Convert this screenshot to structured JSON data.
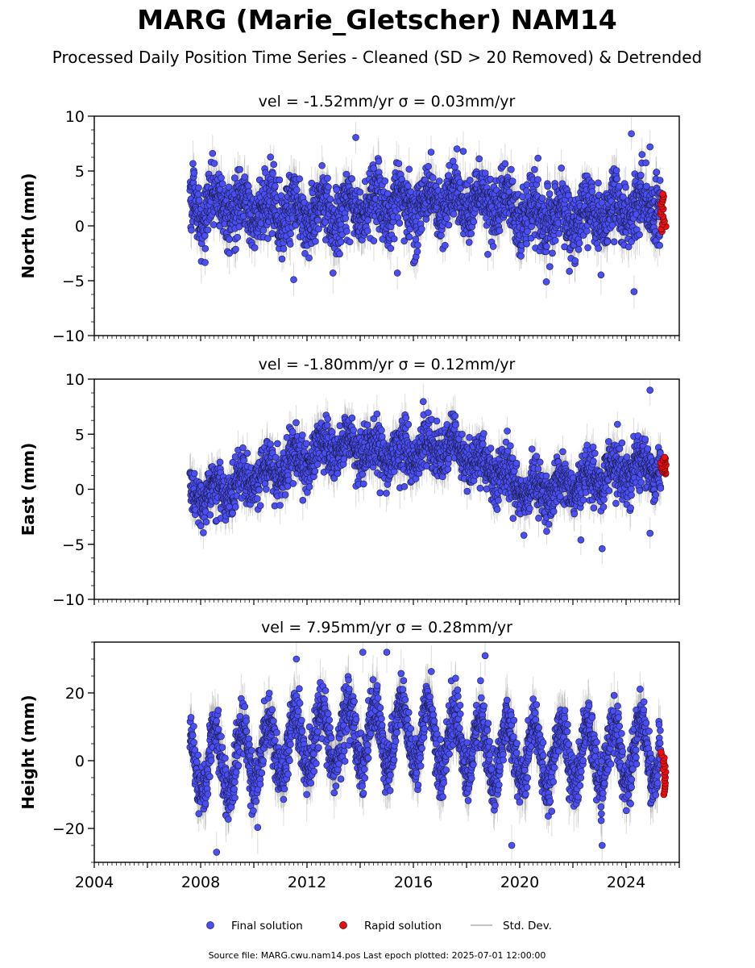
{
  "figure": {
    "title": "MARG (Marie_Gletscher) NAM14",
    "subtitle": "Processed Daily Position Time Series - Cleaned (SD > 20 Removed) & Detrended",
    "footer": "Source file: MARG.cwu.nam14.pos  Last epoch plotted: 2025-07-01 12:00:00"
  },
  "legend": {
    "final_label": "Final solution",
    "rapid_label": "Rapid solution",
    "stddev_label": "Std. Dev."
  },
  "colors": {
    "final": "#4a4ef5",
    "final_edge": "#1a1a40",
    "rapid": "#e81010",
    "stddev": "#808080"
  },
  "chart_data": [
    {
      "type": "scatter",
      "title": "vel = -1.52mm/yr   σ = 0.03mm/yr",
      "ylabel": "North (mm)",
      "xlim": [
        2004.0,
        2026.0
      ],
      "ylim": [
        -10,
        10
      ],
      "yticks": [
        "10",
        "5",
        "0",
        "−5",
        "−10"
      ],
      "yticks_values": [
        10,
        5,
        0,
        -5,
        -10
      ],
      "xticks": [
        "2004",
        "2008",
        "2012",
        "2016",
        "2020",
        "2024"
      ],
      "xticks_values": [
        2004,
        2008,
        2012,
        2016,
        2020,
        2024
      ],
      "final_series": {
        "name": "Final solution",
        "x_range": [
          2007.6,
          2025.3
        ],
        "baseline_breakpoints": [
          [
            2007.6,
            1.8
          ],
          [
            2012.0,
            1.2
          ],
          [
            2016.0,
            2.2
          ],
          [
            2019.0,
            2.4
          ],
          [
            2020.5,
            0.8
          ],
          [
            2023.0,
            1.0
          ],
          [
            2025.3,
            2.0
          ]
        ],
        "seasonal_amplitude": 1.2,
        "scatter_sd": 1.4,
        "typical_sigma": 1.5
      },
      "rapid_series": {
        "name": "Rapid solution",
        "x_range": [
          2025.3,
          2025.5
        ],
        "y_range": [
          -0.5,
          2.9
        ]
      },
      "outliers": [
        [
          2024.2,
          8.4
        ],
        [
          2024.6,
          6.5
        ],
        [
          2024.9,
          7.2
        ],
        [
          2024.3,
          -6.0
        ],
        [
          2021.0,
          -5.1
        ],
        [
          2015.4,
          -4.3
        ],
        [
          2018.8,
          -2.6
        ],
        [
          2011.5,
          -4.9
        ]
      ]
    },
    {
      "type": "scatter",
      "title": "vel = -1.80mm/yr   σ = 0.12mm/yr",
      "ylabel": "East (mm)",
      "xlim": [
        2004.0,
        2026.0
      ],
      "ylim": [
        -10,
        10
      ],
      "yticks": [
        "10",
        "5",
        "0",
        "−5",
        "−10"
      ],
      "yticks_values": [
        10,
        5,
        0,
        -5,
        -10
      ],
      "xticks": [
        "2004",
        "2008",
        "2012",
        "2016",
        "2020",
        "2024"
      ],
      "xticks_values": [
        2004,
        2008,
        2012,
        2016,
        2020,
        2024
      ],
      "final_series": {
        "name": "Final solution",
        "x_range": [
          2007.6,
          2025.3
        ],
        "baseline_breakpoints": [
          [
            2007.6,
            -0.5
          ],
          [
            2009.0,
            0.0
          ],
          [
            2011.0,
            2.0
          ],
          [
            2013.0,
            3.8
          ],
          [
            2015.0,
            3.2
          ],
          [
            2017.5,
            3.8
          ],
          [
            2019.0,
            1.8
          ],
          [
            2020.3,
            -0.3
          ],
          [
            2022.0,
            0.2
          ],
          [
            2023.5,
            1.5
          ],
          [
            2025.3,
            2.2
          ]
        ],
        "seasonal_amplitude": 0.9,
        "scatter_sd": 1.1,
        "typical_sigma": 1.4
      },
      "rapid_series": {
        "name": "Rapid solution",
        "x_range": [
          2025.3,
          2025.5
        ],
        "y_range": [
          1.4,
          2.9
        ]
      },
      "outliers": [
        [
          2024.9,
          9.0
        ],
        [
          2023.1,
          -5.4
        ],
        [
          2024.9,
          -4.0
        ],
        [
          2022.3,
          -4.6
        ]
      ]
    },
    {
      "type": "scatter",
      "title": "vel = 7.95mm/yr   σ = 0.28mm/yr",
      "ylabel": "Height (mm)",
      "xlim": [
        2004.0,
        2026.0
      ],
      "ylim": [
        -30,
        35
      ],
      "yticks": [
        "20",
        "0",
        "−20"
      ],
      "yticks_values": [
        20,
        0,
        -20
      ],
      "xticks": [
        "2004",
        "2008",
        "2012",
        "2016",
        "2020",
        "2024"
      ],
      "xticks_values": [
        2004,
        2008,
        2012,
        2016,
        2020,
        2024
      ],
      "final_series": {
        "name": "Final solution",
        "x_range": [
          2007.6,
          2025.3
        ],
        "baseline_breakpoints": [
          [
            2007.6,
            0.0
          ],
          [
            2009.0,
            -1.0
          ],
          [
            2011.0,
            4.0
          ],
          [
            2013.0,
            7.0
          ],
          [
            2016.0,
            8.0
          ],
          [
            2019.0,
            3.0
          ],
          [
            2021.0,
            1.0
          ],
          [
            2023.0,
            1.5
          ],
          [
            2025.3,
            4.0
          ]
        ],
        "seasonal_amplitude": 9.0,
        "scatter_sd": 4.0,
        "typical_sigma": 6.0
      },
      "rapid_series": {
        "name": "Rapid solution",
        "x_range": [
          2025.3,
          2025.5
        ],
        "y_range": [
          -10.0,
          2.5
        ]
      },
      "outliers": [
        [
          2014.1,
          32.0
        ],
        [
          2015.0,
          32.0
        ],
        [
          2018.7,
          31.0
        ],
        [
          2008.6,
          -27.0
        ],
        [
          2019.7,
          -25.0
        ],
        [
          2023.1,
          -25.0
        ],
        [
          2011.6,
          30.0
        ]
      ]
    }
  ]
}
